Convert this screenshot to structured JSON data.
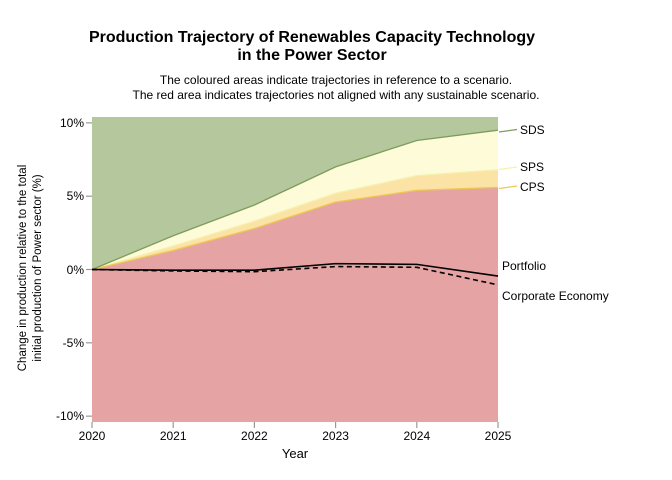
{
  "title": {
    "line1": "Production Trajectory of Renewables Capacity Technology",
    "line2": "in the Power Sector"
  },
  "subtitle": {
    "line1": "The coloured areas indicate trajectories in reference to a scenario.",
    "line2": "The red area indicates trajectories not aligned with any sustainable scenario."
  },
  "axes": {
    "y_label_line1": "Change in production relative to the total",
    "y_label_line2": "initial production of Power sector (%)",
    "x_label": "Year",
    "y_tick_labels": [
      "10%",
      "5%",
      "0%",
      "-5%",
      "-10%"
    ],
    "y_tick_values": [
      10,
      5,
      0,
      -5,
      -10
    ],
    "x_tick_labels": [
      "2020",
      "2021",
      "2022",
      "2023",
      "2024",
      "2025"
    ],
    "x_tick_values": [
      2020,
      2021,
      2022,
      2023,
      2024,
      2025
    ]
  },
  "annotations": {
    "sds": "SDS",
    "sps": "SPS",
    "cps": "CPS",
    "portfolio": "Portfolio",
    "corporate_economy": "Corporate Economy"
  },
  "colors": {
    "sds_fill": "#b5c79d",
    "sds_stroke": "#7f9c5b",
    "sps_fill": "#fdfbd8",
    "sps_stroke": "#f6f0ae",
    "cps_fill": "#fbe3a5",
    "cps_stroke": "#edc854",
    "not_aligned_fill": "#e6a3a3",
    "line_color": "#000000",
    "tick_color": "#999999"
  },
  "chart_data": {
    "type": "area",
    "title": "Production Trajectory of Renewables Capacity Technology in the Power Sector",
    "subtitle": "The coloured areas indicate trajectories in reference to a scenario. The red area indicates trajectories not aligned with any sustainable scenario.",
    "xlabel": "Year",
    "ylabel": "Change in production relative to the total initial production of Power sector (%)",
    "x": [
      2020,
      2021,
      2022,
      2023,
      2024,
      2025
    ],
    "xlim": [
      2020,
      2025
    ],
    "ylim": [
      -10.4,
      10.4
    ],
    "grid": false,
    "legend_position": "right-annotations",
    "area_boundaries": [
      {
        "name": "SDS",
        "values": [
          0,
          2.3,
          4.4,
          7.0,
          8.8,
          9.5
        ],
        "region": "above line is green (aligned with SDS)"
      },
      {
        "name": "SPS",
        "values": [
          0,
          1.6,
          3.3,
          5.2,
          6.4,
          6.8
        ],
        "region": "between SDS and SPS lines is pale yellow"
      },
      {
        "name": "CPS",
        "values": [
          0,
          1.3,
          2.8,
          4.6,
          5.4,
          5.6
        ],
        "region": "between SPS and CPS lines is gold; below CPS is red (not aligned)"
      }
    ],
    "series": [
      {
        "name": "Portfolio",
        "style": "solid",
        "values": [
          0,
          -0.05,
          -0.05,
          0.4,
          0.35,
          -0.45
        ]
      },
      {
        "name": "Corporate Economy",
        "style": "dashed",
        "values": [
          0,
          -0.1,
          -0.15,
          0.2,
          0.15,
          -1.05
        ]
      }
    ]
  }
}
